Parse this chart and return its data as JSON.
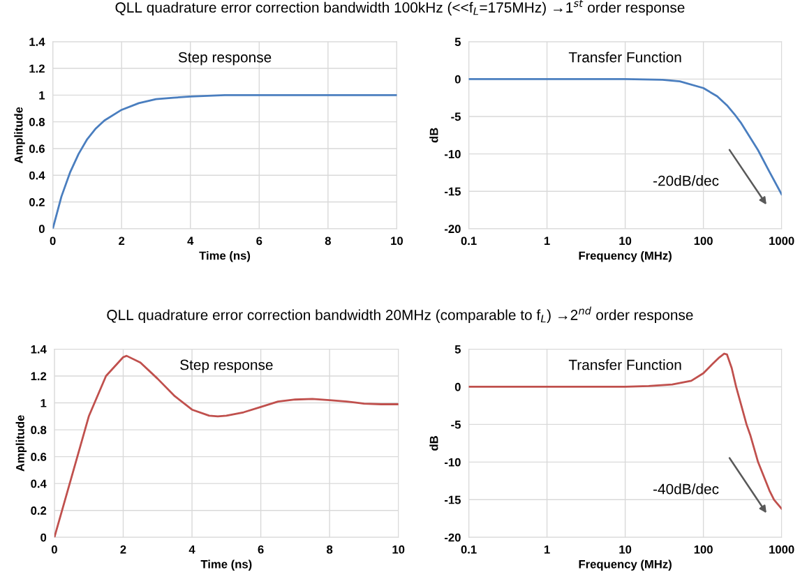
{
  "chart_data": [
    {
      "type": "line",
      "title": "QLL quadrature error correction bandwidth 100kHz (<<f$_{L}$=175MHz) →1$^{st}$ order response",
      "xlabel": "Time (ns)",
      "ylabel": "Amplitude",
      "annotations": [
        "Step response"
      ],
      "x": [
        0,
        0.25,
        0.5,
        0.75,
        1,
        1.25,
        1.5,
        2,
        2.5,
        3,
        3.5,
        4,
        5,
        6,
        8,
        10
      ],
      "series": [
        {
          "color": "#4a7ebf",
          "values": [
            0,
            0.24,
            0.42,
            0.56,
            0.67,
            0.75,
            0.81,
            0.89,
            0.94,
            0.97,
            0.98,
            0.99,
            1.0,
            1.0,
            1.0,
            1.0
          ]
        }
      ],
      "xlim": [
        0,
        10
      ],
      "ylim": [
        0,
        1.4
      ],
      "xticks": [
        0,
        2,
        4,
        6,
        8,
        10
      ],
      "yticks": [
        0,
        0.2,
        0.4,
        0.6,
        0.8,
        1,
        1.2,
        1.4
      ],
      "grid": true
    },
    {
      "type": "line",
      "xlabel": "Frequency (MHz)",
      "ylabel": "dB",
      "annotations": [
        "Transfer Function",
        "-20dB/dec"
      ],
      "log": "x",
      "x": [
        0.1,
        1,
        10,
        30,
        50,
        100,
        150,
        200,
        250,
        300,
        500,
        700,
        1000
      ],
      "series": [
        {
          "color": "#4a7ebf",
          "values": [
            0,
            0,
            0,
            -0.1,
            -0.3,
            -1.2,
            -2.3,
            -3.5,
            -4.7,
            -5.8,
            -9.5,
            -12.4,
            -15.4
          ]
        }
      ],
      "xlim": [
        0.1,
        1000
      ],
      "ylim": [
        -20,
        5
      ],
      "xticks": [
        0.1,
        1,
        10,
        100,
        1000
      ],
      "yticks": [
        -20,
        -15,
        -10,
        -5,
        0,
        5
      ],
      "grid": true
    },
    {
      "type": "line",
      "title": "QLL quadrature error correction bandwidth 20MHz (comparable to f$_{L}$) →2$^{nd}$ order response",
      "xlabel": "Time (ns)",
      "ylabel": "Amplitude",
      "annotations": [
        "Step response"
      ],
      "x": [
        0,
        0.5,
        1,
        1.5,
        2,
        2.1,
        2.5,
        3,
        3.5,
        4,
        4.5,
        4.75,
        5,
        5.5,
        6,
        6.5,
        7,
        7.5,
        8,
        8.5,
        9,
        9.5,
        10
      ],
      "series": [
        {
          "color": "#c0504d",
          "values": [
            0,
            0.45,
            0.9,
            1.2,
            1.34,
            1.35,
            1.3,
            1.18,
            1.05,
            0.95,
            0.905,
            0.9,
            0.905,
            0.93,
            0.97,
            1.01,
            1.025,
            1.03,
            1.02,
            1.01,
            0.995,
            0.99,
            0.99
          ]
        }
      ],
      "xlim": [
        0,
        10
      ],
      "ylim": [
        0,
        1.4
      ],
      "xticks": [
        0,
        2,
        4,
        6,
        8,
        10
      ],
      "yticks": [
        0,
        0.2,
        0.4,
        0.6,
        0.8,
        1,
        1.2,
        1.4
      ],
      "grid": true
    },
    {
      "type": "line",
      "xlabel": "Frequency (MHz)",
      "ylabel": "dB",
      "annotations": [
        "Transfer Function",
        "-40dB/dec"
      ],
      "log": "x",
      "x": [
        0.1,
        1,
        10,
        20,
        40,
        70,
        100,
        130,
        160,
        185,
        200,
        230,
        262,
        300,
        356,
        400,
        500,
        700,
        800,
        1000
      ],
      "series": [
        {
          "color": "#c0504d",
          "values": [
            0,
            0,
            0,
            0.1,
            0.3,
            0.8,
            1.8,
            3.0,
            3.9,
            4.4,
            4.3,
            2.5,
            0,
            -2.2,
            -5,
            -6.5,
            -10,
            -13.8,
            -15,
            -16.2
          ]
        }
      ],
      "xlim": [
        0.1,
        1000
      ],
      "ylim": [
        -20,
        5
      ],
      "xticks": [
        0.1,
        1,
        10,
        100,
        1000
      ],
      "yticks": [
        -20,
        -15,
        -10,
        -5,
        0,
        5
      ],
      "grid": true
    }
  ]
}
